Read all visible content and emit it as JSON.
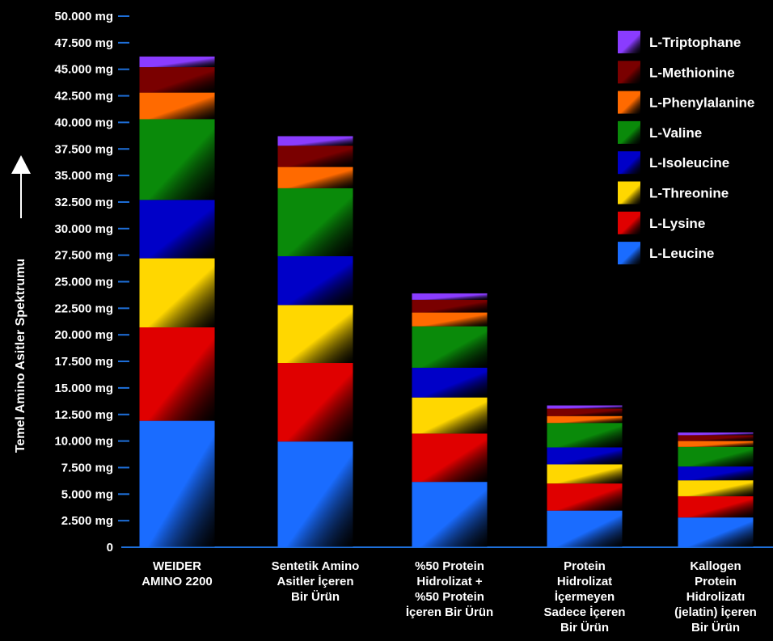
{
  "chart_data": {
    "type": "bar",
    "stacked": true,
    "title": "",
    "ylabel": "Temel Amino Asitler Spektrumu",
    "xlabel": "",
    "ylim": [
      0,
      50000
    ],
    "y_ticks": [
      {
        "value": 0,
        "label": "0"
      },
      {
        "value": 2500,
        "label": "2.500 mg"
      },
      {
        "value": 5000,
        "label": "5.000 mg"
      },
      {
        "value": 7500,
        "label": "7.500 mg"
      },
      {
        "value": 10000,
        "label": "10.000 mg"
      },
      {
        "value": 12500,
        "label": "12.500 mg"
      },
      {
        "value": 15000,
        "label": "15.000 mg"
      },
      {
        "value": 17500,
        "label": "17.500 mg"
      },
      {
        "value": 20000,
        "label": "20.000 mg"
      },
      {
        "value": 22500,
        "label": "22.500 mg"
      },
      {
        "value": 25000,
        "label": "25.000 mg"
      },
      {
        "value": 27500,
        "label": "27.500 mg"
      },
      {
        "value": 30000,
        "label": "30.000 mg"
      },
      {
        "value": 32500,
        "label": "32.500 mg"
      },
      {
        "value": 35000,
        "label": "35.000 mg"
      },
      {
        "value": 37500,
        "label": "37.500 mg"
      },
      {
        "value": 40000,
        "label": "40.000 mg"
      },
      {
        "value": 42500,
        "label": "42.500 mg"
      },
      {
        "value": 45000,
        "label": "45.000 mg"
      },
      {
        "value": 47500,
        "label": "47.500 mg"
      },
      {
        "value": 50000,
        "label": "50.000 mg"
      }
    ],
    "categories": [
      [
        "WEIDER",
        "AMINO 2200"
      ],
      [
        "Sentetik Amino",
        "Asitler İçeren",
        "Bir Ürün"
      ],
      [
        "%50 Protein",
        "Hidrolizat +",
        "%50 Protein",
        "İçeren Bir Ürün"
      ],
      [
        "Protein",
        "Hidrolizat",
        "İçermeyen",
        "Sadece İçeren",
        "Bir Ürün"
      ],
      [
        "Kallogen",
        "Protein",
        "Hidrolizatı",
        "(jelatin) İçeren",
        "Bir Ürün"
      ]
    ],
    "series": [
      {
        "name": "L-Leucine",
        "color": "#1a6cff",
        "values": [
          11900,
          9950,
          6150,
          3450,
          2800
        ]
      },
      {
        "name": "L-Lysine",
        "color": "#e00000",
        "values": [
          8800,
          7400,
          4550,
          2550,
          2000
        ]
      },
      {
        "name": "L-Threonine",
        "color": "#ffd700",
        "values": [
          6500,
          5450,
          3400,
          1800,
          1500
        ]
      },
      {
        "name": "L-Isoleucine",
        "color": "#0000c8",
        "values": [
          5500,
          4600,
          2800,
          1600,
          1300
        ]
      },
      {
        "name": "L-Valine",
        "color": "#0a8a0a",
        "values": [
          7600,
          6400,
          3900,
          2300,
          1850
        ]
      },
      {
        "name": "L-Phenylalanine",
        "color": "#ff6a00",
        "values": [
          2500,
          2000,
          1300,
          650,
          550
        ]
      },
      {
        "name": "L-Methionine",
        "color": "#7a0000",
        "values": [
          2400,
          2000,
          1200,
          700,
          550
        ]
      },
      {
        "name": "L-Triptophane",
        "color": "#8a3cff",
        "values": [
          1000,
          900,
          600,
          300,
          250
        ]
      }
    ],
    "legend": {
      "position": "top-right",
      "order": [
        "L-Triptophane",
        "L-Methionine",
        "L-Phenylalanine",
        "L-Valine",
        "L-Isoleucine",
        "L-Threonine",
        "L-Lysine",
        "L-Leucine"
      ]
    },
    "grid": false
  }
}
